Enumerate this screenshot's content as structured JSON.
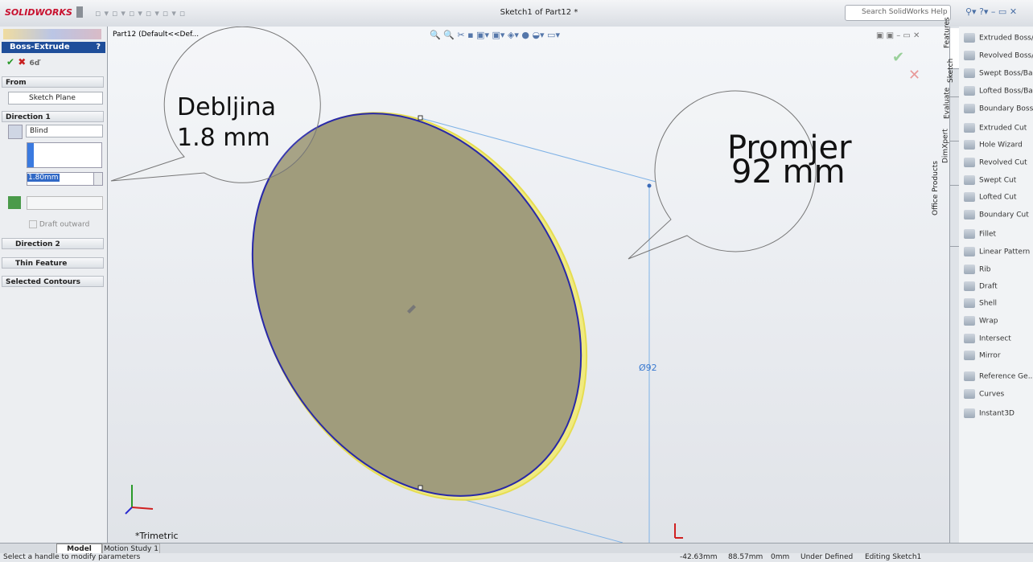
{
  "title_bar": {
    "logo": "SOLIDWORKS",
    "document_title": "Sketch1 of Part12 *",
    "search_placeholder": "Search SolidWorks Help"
  },
  "feature_tree": {
    "root": "Part12  (Default<<Def..."
  },
  "property_manager": {
    "title": "Boss-Extrude",
    "help": "?",
    "from_label": "From",
    "from_value": "Sketch Plane",
    "direction1_label": "Direction 1",
    "end_condition": "Blind",
    "depth": "1.80mm",
    "draft_outward": "Draft outward",
    "direction2_label": "Direction 2",
    "thin_feature_label": "Thin Feature",
    "selected_contours_label": "Selected Contours"
  },
  "callouts": [
    {
      "lines": [
        "Debljina",
        "1.8 mm"
      ]
    },
    {
      "lines": [
        "Promjer",
        "92 mm"
      ]
    }
  ],
  "dimension": "Ø92",
  "view_orientation": "*Trimetric",
  "bottom_tabs": [
    "Model",
    "Motion Study 1"
  ],
  "status_bar": {
    "message": "Select a handle to modify parameters",
    "x": "-42.63mm",
    "y": "88.57mm",
    "z": "0mm",
    "state": "Under Defined",
    "mode": "Editing Sketch1"
  },
  "task_tabs": [
    "Features",
    "Sketch",
    "Evaluate",
    "DimXpert",
    "Office Products"
  ],
  "commands": [
    "Extruded Boss/...",
    "Revolved Boss/...",
    "Swept Boss/Base",
    "Lofted Boss/Base",
    "Boundary Boss/...",
    "Extruded Cut",
    "Hole Wizard",
    "Revolved Cut",
    "Swept Cut",
    "Lofted Cut",
    "Boundary Cut",
    "Fillet",
    "Linear Pattern",
    "Rib",
    "Draft",
    "Shell",
    "Wrap",
    "Intersect",
    "Mirror",
    "Reference Ge...",
    "Curves",
    "Instant3D"
  ]
}
